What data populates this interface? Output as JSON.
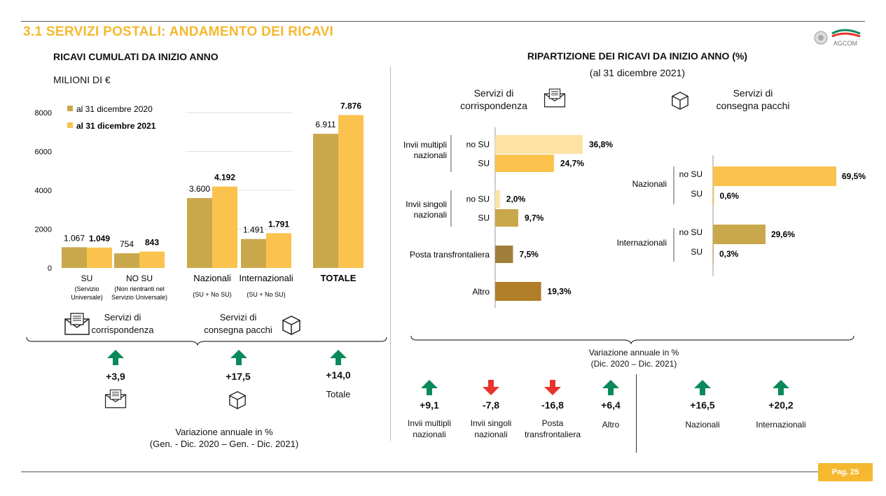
{
  "header": {
    "title": "3.1 SERVIZI POSTALI: ANDAMENTO DEI RICAVI",
    "logo_text": "AGCOM",
    "page_badge": "Pag. 25"
  },
  "colors": {
    "accent": "#F5B82E",
    "series_2020": "#C9A84C",
    "series_2021": "#FBC24E",
    "light_nosu": "#FDE2A6",
    "cross_border": "#A07F3A",
    "other": "#B07E28",
    "up": "#0A8A5A",
    "down": "#E8342B"
  },
  "left": {
    "heading": "RICAVI CUMULATI DA INIZIO ANNO",
    "unit": "MILIONI DI €",
    "group_corr_label": [
      "Servizi di",
      "corrispondenza"
    ],
    "group_pacchi_label": [
      "Servizi di",
      "consegna pacchi"
    ],
    "variation_values": [
      "+3,9",
      "+17,5",
      "+14,0"
    ],
    "variation_total_label": "Totale",
    "variation_note": [
      "Variazione annuale in %",
      "(Gen. - Dic. 2020 – Gen. - Dic. 2021)"
    ]
  },
  "right": {
    "heading": "RIPARTIZIONE DEI RICAVI DA INIZIO ANNO (%)",
    "subheading": "(al 31 dicembre 2021)",
    "corr_title": [
      "Servizi di",
      "corrispondenza"
    ],
    "pacchi_title": [
      "Servizi di",
      "consegna pacchi"
    ],
    "variation_note": [
      "Variazione annuale in %",
      "(Dic. 2020 – Dic. 2021)"
    ],
    "variations": [
      {
        "value": "+9,1",
        "label": [
          "Invii multipli",
          "nazionali"
        ],
        "dir": "up"
      },
      {
        "value": "-7,8",
        "label": [
          "Invii singoli",
          "nazionali"
        ],
        "dir": "down"
      },
      {
        "value": "-16,8",
        "label": [
          "Posta",
          "transfrontaliera"
        ],
        "dir": "down"
      },
      {
        "value": "+6,4",
        "label": [
          "Altro"
        ],
        "dir": "up"
      },
      {
        "value": "+16,5",
        "label": [
          "Nazionali"
        ],
        "dir": "up"
      },
      {
        "value": "+20,2",
        "label": [
          "Internazionali"
        ],
        "dir": "up"
      }
    ]
  },
  "chart_data": [
    {
      "type": "bar",
      "title": "RICAVI CUMULATI DA INIZIO ANNO",
      "ylabel": "MILIONI DI €",
      "ylim": [
        0,
        8000
      ],
      "yticks": [
        "0",
        "2000",
        "4000",
        "6000",
        "8000"
      ],
      "categories": [
        {
          "name": "SU",
          "sub": [
            "(Servizio",
            "Universale)"
          ]
        },
        {
          "name": "NO SU",
          "sub": [
            "(Non rientranti nel",
            "Servizio Universale)"
          ]
        },
        {
          "name": "Nazionali",
          "sub": [
            "(SU + No SU)"
          ]
        },
        {
          "name": "Internazionali",
          "sub": [
            "(SU + No SU)"
          ]
        },
        {
          "name": "TOTALE",
          "sub": []
        }
      ],
      "series": [
        {
          "name": "al 31 dicembre 2020",
          "values": [
            1067,
            754,
            3600,
            1491,
            6911
          ],
          "labels": [
            "1.067",
            "754",
            "3.600",
            "1.491",
            "6.911"
          ]
        },
        {
          "name": "al 31 dicembre 2021",
          "values": [
            1049,
            843,
            4192,
            1791,
            7876
          ],
          "labels": [
            "1.049",
            "843",
            "4.192",
            "1.791",
            "7.876"
          ]
        }
      ],
      "legend": "top-left"
    },
    {
      "type": "bar",
      "title": "Servizi di corrispondenza",
      "orientation": "horizontal",
      "groups": [
        {
          "name": [
            "Invii multipli",
            "nazionali"
          ],
          "bars": [
            {
              "sub": "no SU",
              "value": 36.8,
              "label": "36,8%"
            },
            {
              "sub": "SU",
              "value": 24.7,
              "label": "24,7%"
            }
          ]
        },
        {
          "name": [
            "Invii singoli",
            "nazionali"
          ],
          "bars": [
            {
              "sub": "no SU",
              "value": 2.0,
              "label": "2,0%"
            },
            {
              "sub": "SU",
              "value": 9.7,
              "label": "9,7%"
            }
          ]
        },
        {
          "name": [
            "Posta transfrontaliera"
          ],
          "bars": [
            {
              "sub": "",
              "value": 7.5,
              "label": "7,5%"
            }
          ]
        },
        {
          "name": [
            "Altro"
          ],
          "bars": [
            {
              "sub": "",
              "value": 19.3,
              "label": "19,3%"
            }
          ]
        }
      ]
    },
    {
      "type": "bar",
      "title": "Servizi di consegna pacchi",
      "orientation": "horizontal",
      "groups": [
        {
          "name": [
            "Nazionali"
          ],
          "bars": [
            {
              "sub": "no SU",
              "value": 69.5,
              "label": "69,5%"
            },
            {
              "sub": "SU",
              "value": 0.6,
              "label": "0,6%"
            }
          ]
        },
        {
          "name": [
            "Internazionali"
          ],
          "bars": [
            {
              "sub": "no SU",
              "value": 29.6,
              "label": "29,6%"
            },
            {
              "sub": "SU",
              "value": 0.3,
              "label": "0,3%"
            }
          ]
        }
      ]
    }
  ]
}
